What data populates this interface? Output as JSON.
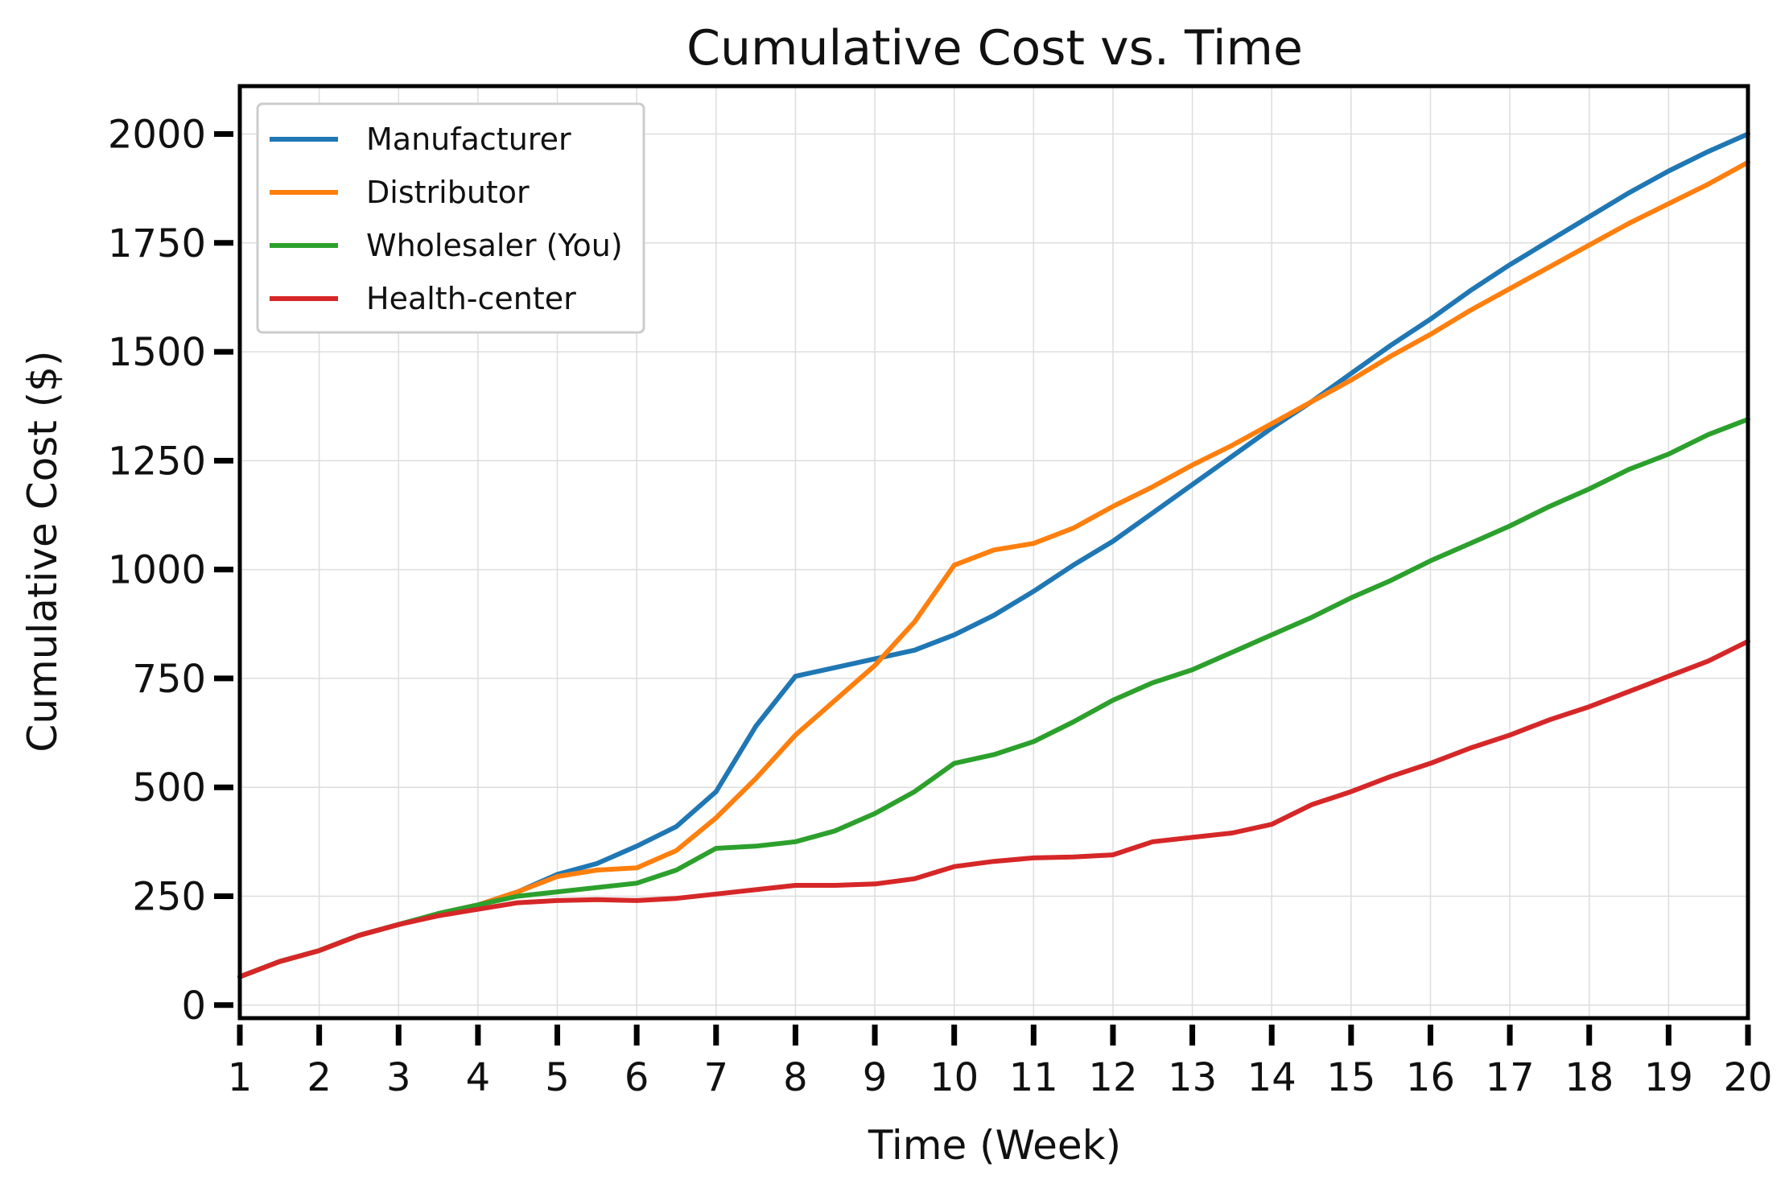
{
  "chart_data": {
    "type": "line",
    "title": "Cumulative Cost vs. Time",
    "xlabel": "Time (Week)",
    "ylabel": "Cumulative Cost ($)",
    "xlim": [
      1,
      20
    ],
    "ylim": [
      -30,
      2110
    ],
    "grid": true,
    "legend_position": "top-left",
    "x_ticks": [
      1,
      2,
      3,
      4,
      5,
      6,
      7,
      8,
      9,
      10,
      11,
      12,
      13,
      14,
      15,
      16,
      17,
      18,
      19,
      20
    ],
    "y_ticks": [
      0,
      250,
      500,
      750,
      1000,
      1250,
      1500,
      1750,
      2000
    ],
    "x": [
      1,
      1.5,
      2,
      2.5,
      3,
      3.5,
      4,
      4.5,
      5,
      5.5,
      6,
      6.5,
      7,
      7.5,
      8,
      8.5,
      9,
      9.5,
      10,
      10.5,
      11,
      11.5,
      12,
      12.5,
      13,
      13.5,
      14,
      14.5,
      15,
      15.5,
      16,
      16.5,
      17,
      17.5,
      18,
      18.5,
      19,
      19.5,
      20
    ],
    "series": [
      {
        "name": "Manufacturer",
        "color": "#1f77b4",
        "values": [
          65,
          100,
          125,
          160,
          185,
          210,
          230,
          260,
          300,
          325,
          365,
          410,
          490,
          640,
          755,
          775,
          795,
          815,
          850,
          895,
          950,
          1010,
          1065,
          1130,
          1195,
          1260,
          1325,
          1385,
          1450,
          1515,
          1575,
          1640,
          1700,
          1755,
          1810,
          1865,
          1915,
          1960,
          2000
        ]
      },
      {
        "name": "Distributor",
        "color": "#ff7f0e",
        "values": [
          65,
          100,
          125,
          160,
          185,
          210,
          230,
          260,
          295,
          310,
          315,
          355,
          430,
          520,
          620,
          700,
          780,
          880,
          1010,
          1045,
          1060,
          1095,
          1145,
          1190,
          1240,
          1285,
          1335,
          1385,
          1435,
          1490,
          1540,
          1595,
          1645,
          1695,
          1745,
          1795,
          1840,
          1885,
          1935
        ]
      },
      {
        "name": "Wholesaler (You)",
        "color": "#2ca02c",
        "values": [
          65,
          100,
          125,
          160,
          185,
          210,
          230,
          250,
          260,
          270,
          280,
          310,
          360,
          365,
          375,
          400,
          440,
          490,
          555,
          575,
          605,
          650,
          700,
          740,
          770,
          810,
          850,
          890,
          935,
          975,
          1020,
          1060,
          1100,
          1145,
          1185,
          1230,
          1265,
          1310,
          1345
        ]
      },
      {
        "name": "Health-center",
        "color": "#d62728",
        "values": [
          65,
          100,
          125,
          160,
          185,
          205,
          220,
          235,
          240,
          242,
          240,
          245,
          255,
          265,
          275,
          275,
          278,
          290,
          318,
          330,
          338,
          340,
          345,
          375,
          385,
          395,
          415,
          460,
          490,
          525,
          555,
          590,
          620,
          655,
          685,
          720,
          755,
          790,
          835
        ]
      }
    ]
  }
}
